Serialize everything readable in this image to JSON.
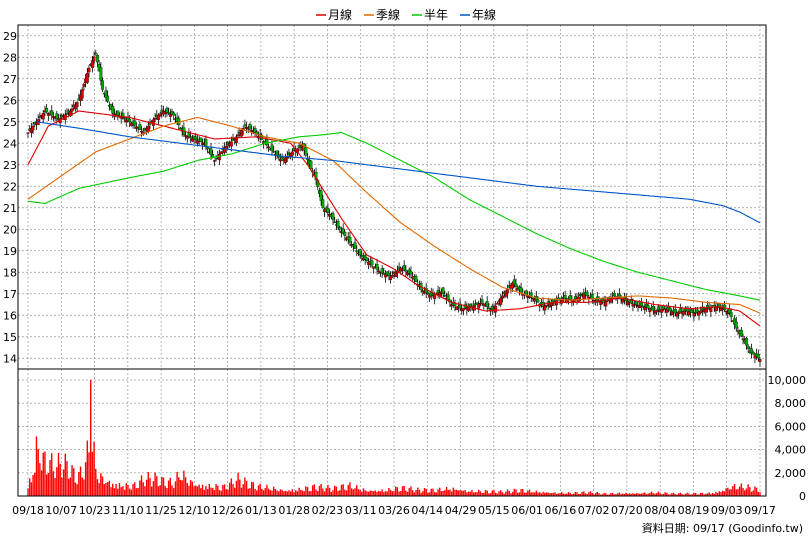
{
  "chart_data": {
    "type": "candlestick",
    "legend": [
      {
        "name": "月線",
        "color": "#dd0000"
      },
      {
        "name": "季線",
        "color": "#e06a00"
      },
      {
        "name": "半年",
        "color": "#00cc00"
      },
      {
        "name": "年線",
        "color": "#0055cc"
      }
    ],
    "price_axis": {
      "min": 13.5,
      "max": 29.5,
      "ticks": [
        14,
        15,
        16,
        17,
        18,
        19,
        20,
        21,
        22,
        23,
        24,
        25,
        26,
        27,
        28,
        29
      ],
      "tick_labels": [
        "14",
        "15",
        "16",
        "17",
        "18",
        "19",
        "20",
        "21",
        "22",
        "23",
        "24",
        "25",
        "26",
        "27",
        "28",
        "29"
      ]
    },
    "volume_axis": {
      "min": 0,
      "max": 10000,
      "ticks": [
        0,
        2000,
        4000,
        6000,
        8000,
        10000
      ],
      "tick_labels": [
        "0",
        "2,000",
        "4,000",
        "6,000",
        "8,000",
        "10,000"
      ]
    },
    "x_tick_labels": [
      "09/18",
      "10/07",
      "10/23",
      "11/10",
      "11/25",
      "12/10",
      "12/26",
      "01/13",
      "01/28",
      "02/23",
      "03/11",
      "03/26",
      "04/14",
      "04/29",
      "05/15",
      "06/01",
      "06/16",
      "07/02",
      "07/20",
      "08/04",
      "08/19",
      "09/03",
      "09/17"
    ],
    "grid": true,
    "moving_averages": {
      "月線": [
        [
          0,
          23.0
        ],
        [
          12,
          24.8
        ],
        [
          30,
          25.5
        ],
        [
          60,
          25.2
        ],
        [
          90,
          24.6
        ],
        [
          110,
          24.2
        ],
        [
          135,
          24.3
        ],
        [
          155,
          24.0
        ],
        [
          165,
          23.0
        ],
        [
          185,
          20.5
        ],
        [
          200,
          18.8
        ],
        [
          215,
          18.2
        ],
        [
          230,
          17.4
        ],
        [
          250,
          16.6
        ],
        [
          270,
          16.2
        ],
        [
          290,
          16.3
        ],
        [
          310,
          16.6
        ],
        [
          330,
          16.6
        ],
        [
          350,
          16.8
        ],
        [
          370,
          16.5
        ],
        [
          390,
          16.3
        ],
        [
          408,
          16.4
        ],
        [
          420,
          16.2
        ],
        [
          432,
          15.5
        ]
      ],
      "季線": [
        [
          0,
          21.4
        ],
        [
          20,
          22.5
        ],
        [
          40,
          23.6
        ],
        [
          60,
          24.2
        ],
        [
          80,
          24.8
        ],
        [
          100,
          25.2
        ],
        [
          120,
          24.8
        ],
        [
          140,
          24.3
        ],
        [
          160,
          24.0
        ],
        [
          180,
          23.2
        ],
        [
          200,
          21.7
        ],
        [
          220,
          20.3
        ],
        [
          240,
          19.2
        ],
        [
          260,
          18.2
        ],
        [
          280,
          17.3
        ],
        [
          300,
          16.8
        ],
        [
          320,
          16.7
        ],
        [
          340,
          16.8
        ],
        [
          360,
          16.9
        ],
        [
          380,
          16.8
        ],
        [
          400,
          16.6
        ],
        [
          420,
          16.5
        ],
        [
          432,
          16.1
        ]
      ],
      "半年": [
        [
          0,
          21.3
        ],
        [
          10,
          21.2
        ],
        [
          30,
          21.9
        ],
        [
          60,
          22.4
        ],
        [
          80,
          22.7
        ],
        [
          100,
          23.2
        ],
        [
          120,
          23.5
        ],
        [
          140,
          24.0
        ],
        [
          160,
          24.3
        ],
        [
          175,
          24.4
        ],
        [
          185,
          24.5
        ],
        [
          200,
          24.0
        ],
        [
          220,
          23.2
        ],
        [
          240,
          22.4
        ],
        [
          260,
          21.4
        ],
        [
          280,
          20.6
        ],
        [
          300,
          19.8
        ],
        [
          320,
          19.1
        ],
        [
          340,
          18.5
        ],
        [
          360,
          18.0
        ],
        [
          380,
          17.6
        ],
        [
          400,
          17.2
        ],
        [
          420,
          16.9
        ],
        [
          432,
          16.7
        ]
      ],
      "年線": [
        [
          5,
          25.0
        ],
        [
          30,
          24.7
        ],
        [
          60,
          24.3
        ],
        [
          90,
          24.0
        ],
        [
          120,
          23.7
        ],
        [
          150,
          23.4
        ],
        [
          180,
          23.2
        ],
        [
          210,
          22.9
        ],
        [
          240,
          22.6
        ],
        [
          270,
          22.3
        ],
        [
          300,
          22.0
        ],
        [
          330,
          21.8
        ],
        [
          360,
          21.6
        ],
        [
          390,
          21.4
        ],
        [
          410,
          21.1
        ],
        [
          420,
          20.8
        ],
        [
          432,
          20.3
        ]
      ]
    },
    "price_path": [
      [
        0,
        24.5
      ],
      [
        5,
        25.0
      ],
      [
        10,
        25.5
      ],
      [
        18,
        25.1
      ],
      [
        25,
        25.5
      ],
      [
        30,
        26.0
      ],
      [
        36,
        27.5
      ],
      [
        40,
        28.2
      ],
      [
        44,
        26.5
      ],
      [
        50,
        25.4
      ],
      [
        56,
        25.2
      ],
      [
        62,
        24.9
      ],
      [
        68,
        24.5
      ],
      [
        74,
        25.1
      ],
      [
        80,
        25.5
      ],
      [
        86,
        25.3
      ],
      [
        92,
        24.4
      ],
      [
        98,
        24.2
      ],
      [
        104,
        24.0
      ],
      [
        110,
        23.2
      ],
      [
        116,
        23.8
      ],
      [
        122,
        24.2
      ],
      [
        128,
        24.8
      ],
      [
        134,
        24.5
      ],
      [
        140,
        24.0
      ],
      [
        146,
        23.5
      ],
      [
        150,
        23.2
      ],
      [
        156,
        23.6
      ],
      [
        162,
        23.9
      ],
      [
        166,
        23.0
      ],
      [
        170,
        22.3
      ],
      [
        174,
        21.0
      ],
      [
        178,
        20.7
      ],
      [
        182,
        20.2
      ],
      [
        186,
        19.8
      ],
      [
        190,
        19.4
      ],
      [
        196,
        18.8
      ],
      [
        202,
        18.4
      ],
      [
        208,
        18.0
      ],
      [
        214,
        17.8
      ],
      [
        220,
        18.2
      ],
      [
        226,
        17.9
      ],
      [
        232,
        17.2
      ],
      [
        238,
        16.9
      ],
      [
        244,
        17.1
      ],
      [
        250,
        16.5
      ],
      [
        256,
        16.3
      ],
      [
        262,
        16.4
      ],
      [
        268,
        16.6
      ],
      [
        274,
        16.2
      ],
      [
        280,
        16.9
      ],
      [
        286,
        17.5
      ],
      [
        292,
        17.0
      ],
      [
        298,
        16.8
      ],
      [
        304,
        16.4
      ],
      [
        310,
        16.6
      ],
      [
        316,
        16.8
      ],
      [
        322,
        16.7
      ],
      [
        328,
        17.0
      ],
      [
        334,
        16.7
      ],
      [
        340,
        16.6
      ],
      [
        346,
        16.9
      ],
      [
        352,
        16.7
      ],
      [
        358,
        16.5
      ],
      [
        364,
        16.4
      ],
      [
        370,
        16.2
      ],
      [
        376,
        16.3
      ],
      [
        382,
        16.1
      ],
      [
        388,
        16.2
      ],
      [
        394,
        16.1
      ],
      [
        400,
        16.3
      ],
      [
        406,
        16.4
      ],
      [
        410,
        16.3
      ],
      [
        414,
        16.1
      ],
      [
        418,
        15.4
      ],
      [
        422,
        14.9
      ],
      [
        426,
        14.3
      ],
      [
        432,
        13.95
      ]
    ],
    "volume_path": [
      [
        0,
        1200
      ],
      [
        3,
        2000
      ],
      [
        5,
        4700
      ],
      [
        8,
        3500
      ],
      [
        12,
        3100
      ],
      [
        16,
        2500
      ],
      [
        20,
        2800
      ],
      [
        24,
        2400
      ],
      [
        28,
        1600
      ],
      [
        32,
        1900
      ],
      [
        36,
        4000
      ],
      [
        37,
        10000
      ],
      [
        38,
        5000
      ],
      [
        40,
        2300
      ],
      [
        44,
        1600
      ],
      [
        50,
        1100
      ],
      [
        56,
        1000
      ],
      [
        62,
        900
      ],
      [
        68,
        1400
      ],
      [
        74,
        1500
      ],
      [
        80,
        1200
      ],
      [
        86,
        1100
      ],
      [
        90,
        2000
      ],
      [
        96,
        1300
      ],
      [
        100,
        1000
      ],
      [
        108,
        900
      ],
      [
        116,
        800
      ],
      [
        124,
        1400
      ],
      [
        130,
        1000
      ],
      [
        136,
        800
      ],
      [
        144,
        700
      ],
      [
        152,
        500
      ],
      [
        160,
        600
      ],
      [
        170,
        800
      ],
      [
        180,
        600
      ],
      [
        190,
        900
      ],
      [
        200,
        500
      ],
      [
        210,
        500
      ],
      [
        220,
        700
      ],
      [
        230,
        500
      ],
      [
        240,
        500
      ],
      [
        250,
        700
      ],
      [
        260,
        450
      ],
      [
        270,
        400
      ],
      [
        280,
        350
      ],
      [
        290,
        500
      ],
      [
        300,
        400
      ],
      [
        310,
        300
      ],
      [
        320,
        250
      ],
      [
        330,
        300
      ],
      [
        340,
        200
      ],
      [
        350,
        250
      ],
      [
        360,
        250
      ],
      [
        370,
        300
      ],
      [
        380,
        200
      ],
      [
        390,
        200
      ],
      [
        400,
        250
      ],
      [
        405,
        300
      ],
      [
        410,
        500
      ],
      [
        414,
        800
      ],
      [
        418,
        900
      ],
      [
        422,
        800
      ],
      [
        426,
        700
      ],
      [
        432,
        500
      ]
    ],
    "colors": {
      "up": "#dd0000",
      "down": "#00aa00",
      "wick": "#000000",
      "volume": "#ff0000",
      "grid": "#999999",
      "frame": "#000000"
    }
  },
  "footer": {
    "text": "資料日期: 09/17  (Goodinfo.tw)"
  }
}
